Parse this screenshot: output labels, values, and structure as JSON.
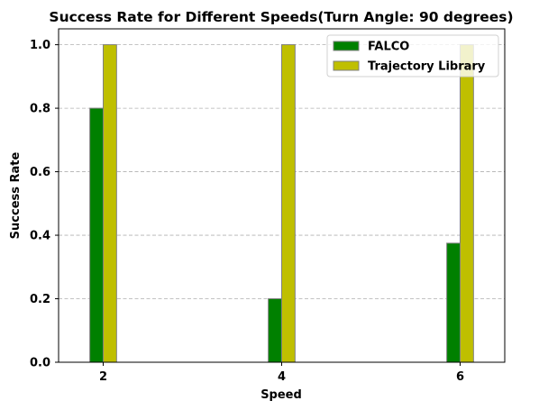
{
  "chart_data": {
    "type": "bar",
    "title": "Success Rate for Different Speeds(Turn Angle: 90 degrees)",
    "xlabel": "Speed",
    "ylabel": "Success Rate",
    "categories": [
      "2",
      "4",
      "6"
    ],
    "x": [
      2,
      4,
      6
    ],
    "series": [
      {
        "name": "FALCO",
        "values": [
          0.8,
          0.2,
          0.375
        ],
        "color": "#008000"
      },
      {
        "name": "Trajectory Library",
        "values": [
          1.0,
          1.0,
          1.0
        ],
        "color": "#bfbf00"
      }
    ],
    "ylim": [
      0,
      1.05
    ],
    "yticks": [
      0.0,
      0.2,
      0.4,
      0.6,
      0.8,
      1.0
    ],
    "ytick_labels": [
      "0.0",
      "0.2",
      "0.4",
      "0.6",
      "0.8",
      "1.0"
    ],
    "xticks": [
      2,
      4,
      6
    ],
    "xtick_labels": [
      "2",
      "4",
      "6"
    ],
    "grid": "y-dashed",
    "legend_position": "top-right",
    "bar_edge_color": "#808080"
  }
}
